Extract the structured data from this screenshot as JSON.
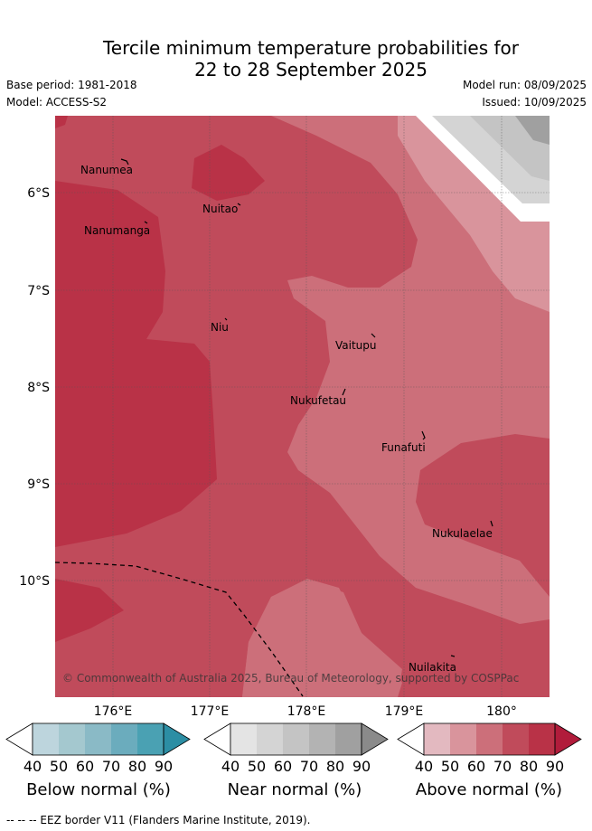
{
  "title_line1": "Tercile minimum temperature probabilities for",
  "title_line2": "22 to 28 September 2025",
  "base_period": "Base period: 1981-2018",
  "model": "Model: ACCESS-S2",
  "model_run": "Model run: 08/09/2025",
  "issued": "Issued: 10/09/2025",
  "map": {
    "lat_ticks": [
      "6°S",
      "7°S",
      "8°S",
      "9°S",
      "10°S"
    ],
    "lon_ticks": [
      "176°E",
      "177°E",
      "178°E",
      "179°E",
      "180°"
    ],
    "places": [
      "Nanumea",
      "Nuitao",
      "Nanumanga",
      "Niu",
      "Vaitupu",
      "Nukufetau",
      "Funafuti",
      "Nukulaelae",
      "Nuilakita"
    ],
    "copyright": "© Commonwealth of Australia 2025, Bureau of Meteorology, supported by COSPPac"
  },
  "colorbars": [
    {
      "name": "Below normal (%)",
      "ticks": [
        "40",
        "50",
        "60",
        "70",
        "80",
        "90"
      ],
      "colors": [
        "#ffffff",
        "#bdd5dd",
        "#a4c8cf",
        "#8abac6",
        "#6bacbd",
        "#4aa1b3",
        "#2c8ea4"
      ]
    },
    {
      "name": "Near normal (%)",
      "ticks": [
        "40",
        "50",
        "60",
        "70",
        "80",
        "90"
      ],
      "colors": [
        "#ffffff",
        "#e4e4e4",
        "#d4d4d4",
        "#c4c4c4",
        "#b3b3b3",
        "#a0a0a0",
        "#8a8a8a"
      ]
    },
    {
      "name": "Above normal (%)",
      "ticks": [
        "40",
        "50",
        "60",
        "70",
        "80",
        "90"
      ],
      "colors": [
        "#ffffff",
        "#e3b9c0",
        "#d9949c",
        "#cc6f7a",
        "#c04b5b",
        "#b93247",
        "#b11c3b"
      ]
    }
  ],
  "footer": "--  --  -- EEZ border V11 (Flanders Marine Institute, 2019)."
}
